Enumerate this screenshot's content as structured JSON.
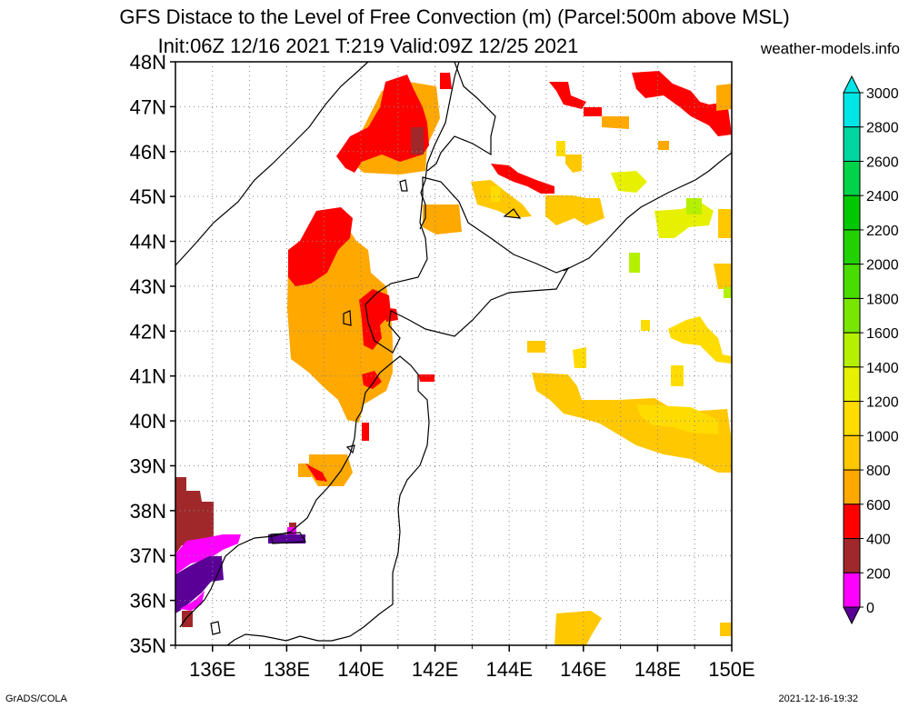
{
  "title": {
    "line1": "GFS Distace to the Level of Free Convection (m) (Parcel:500m above MSL)",
    "line2": "Init:06Z 12/16 2021 T:219 Valid:09Z 12/25 2021",
    "site": "weather-models.info"
  },
  "footer": {
    "left": "GrADS/COLA",
    "right": "2021-12-16-19:32"
  },
  "map": {
    "lat_range": [
      35,
      48
    ],
    "lon_range": [
      135,
      150
    ],
    "lat_labels": [
      "48N",
      "47N",
      "46N",
      "45N",
      "44N",
      "43N",
      "42N",
      "41N",
      "40N",
      "39N",
      "38N",
      "37N",
      "36N",
      "35N"
    ],
    "lon_labels": [
      "136E",
      "138E",
      "140E",
      "142E",
      "144E",
      "146E",
      "148E",
      "150E"
    ],
    "grid": "dotted",
    "coastline_color": "#000000"
  },
  "colorbar": {
    "levels": [
      "3000",
      "2800",
      "2600",
      "2400",
      "2200",
      "2000",
      "1800",
      "1600",
      "1400",
      "1200",
      "1000",
      "800",
      "600",
      "400",
      "200",
      "0"
    ],
    "colors": [
      "#00e6e6",
      "#00d6a0",
      "#00d24a",
      "#00c800",
      "#22d200",
      "#48dc00",
      "#78e600",
      "#b4f000",
      "#e6f000",
      "#ffdc00",
      "#ffc800",
      "#ffa800",
      "#ff0000",
      "#a0282a",
      "#ff00ff",
      "#5a0096"
    ]
  }
}
